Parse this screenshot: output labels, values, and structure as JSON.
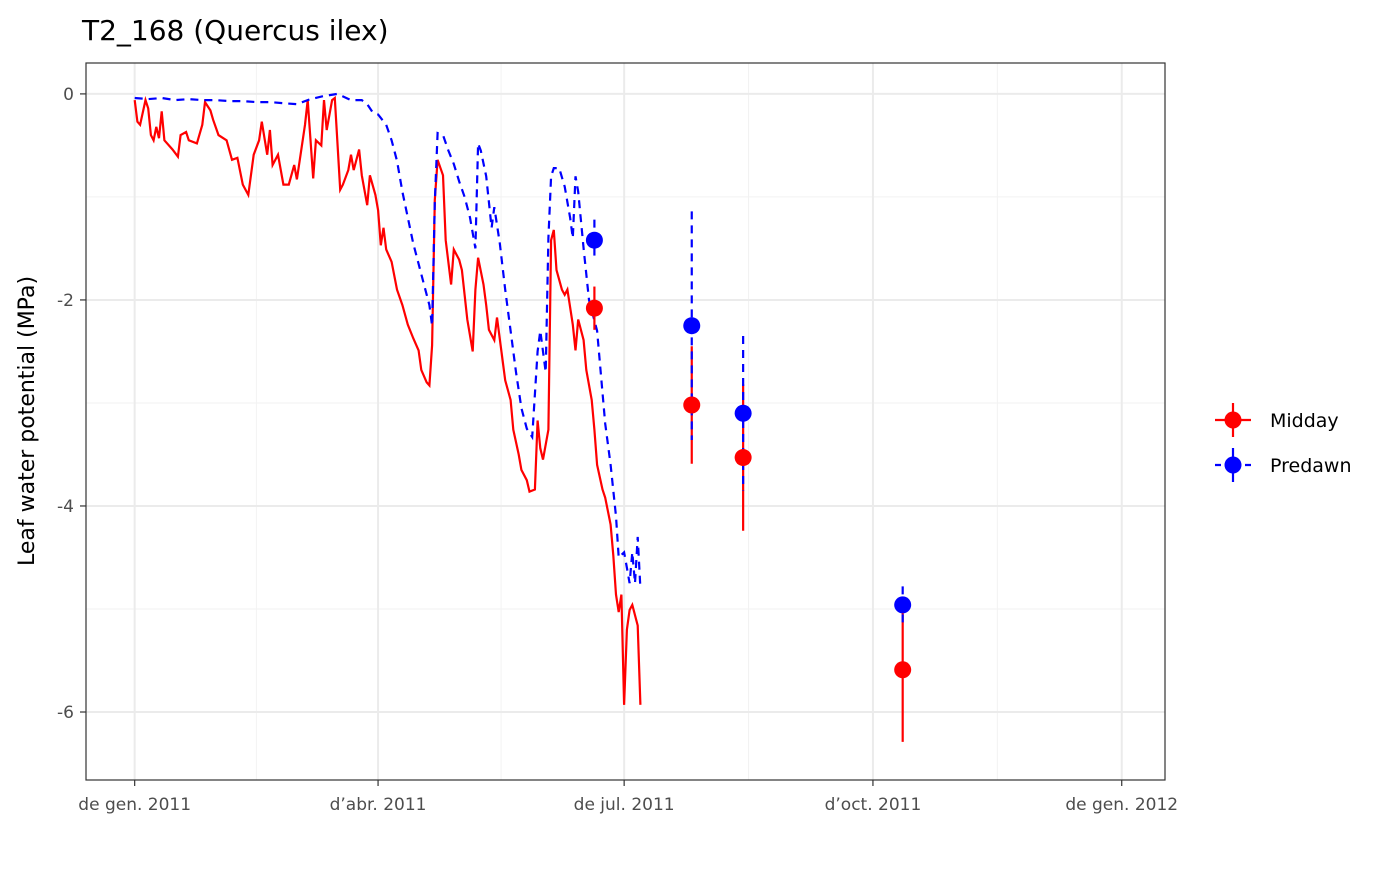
{
  "chart_data": {
    "type": "line",
    "title": "T2_168 (Quercus ilex)",
    "y_label": "Leaf water potential (MPa)",
    "xlim": [
      -18,
      381
    ],
    "ylim": [
      -6.66,
      0.3
    ],
    "xticks": [
      {
        "value": 0,
        "label": "de gen. 2011"
      },
      {
        "value": 90,
        "label": "d’abr. 2011"
      },
      {
        "value": 181,
        "label": "de jul. 2011"
      },
      {
        "value": 273,
        "label": "d’oct. 2011"
      },
      {
        "value": 365,
        "label": "de gen. 2012"
      }
    ],
    "yticks": [
      0,
      -2,
      -4,
      -6
    ],
    "grid": true,
    "legend": "right",
    "series": [
      {
        "name": "Midday",
        "color": "#ff0000",
        "linetype": "solid",
        "x": [
          0,
          1,
          2,
          4,
          5,
          6,
          7,
          8,
          9,
          10,
          11,
          14,
          16,
          17,
          19,
          20,
          23,
          25,
          26,
          28,
          29,
          31,
          34,
          36,
          38,
          40,
          42,
          44,
          46,
          47,
          49,
          50,
          51,
          53,
          55,
          57,
          59,
          60,
          63,
          64,
          66,
          67,
          69,
          70,
          71,
          73,
          74,
          76,
          77,
          79,
          80,
          81,
          83,
          84,
          86,
          87,
          89,
          90,
          91,
          92,
          93,
          95,
          97,
          99,
          101,
          103,
          105,
          106,
          108,
          109,
          110,
          111,
          112,
          114,
          115,
          117,
          118,
          120,
          121,
          122,
          123,
          125,
          126,
          127,
          129,
          130,
          131,
          133,
          134,
          136,
          137,
          139,
          140,
          142,
          143,
          145,
          146,
          148,
          149,
          150,
          151,
          153,
          154,
          155,
          156,
          158,
          159,
          160,
          162,
          163,
          164,
          166,
          167,
          169,
          170,
          171,
          173,
          174,
          176,
          177,
          178,
          179,
          180,
          181,
          182,
          183,
          184,
          186,
          187
        ],
        "values": [
          -0.06,
          -0.27,
          -0.3,
          -0.06,
          -0.14,
          -0.4,
          -0.45,
          -0.32,
          -0.43,
          -0.17,
          -0.45,
          -0.54,
          -0.61,
          -0.4,
          -0.37,
          -0.45,
          -0.48,
          -0.3,
          -0.08,
          -0.16,
          -0.25,
          -0.4,
          -0.45,
          -0.64,
          -0.62,
          -0.88,
          -0.98,
          -0.59,
          -0.45,
          -0.27,
          -0.59,
          -0.35,
          -0.69,
          -0.59,
          -0.88,
          -0.88,
          -0.69,
          -0.83,
          -0.3,
          -0.06,
          -0.82,
          -0.45,
          -0.5,
          -0.06,
          -0.35,
          -0.06,
          -0.04,
          -0.93,
          -0.88,
          -0.74,
          -0.59,
          -0.74,
          -0.54,
          -0.79,
          -1.08,
          -0.79,
          -0.98,
          -1.13,
          -1.47,
          -1.3,
          -1.51,
          -1.63,
          -1.9,
          -2.05,
          -2.24,
          -2.37,
          -2.49,
          -2.68,
          -2.8,
          -2.83,
          -2.44,
          -1.03,
          -0.64,
          -0.79,
          -1.42,
          -1.85,
          -1.51,
          -1.61,
          -1.71,
          -1.95,
          -2.19,
          -2.5,
          -1.9,
          -1.59,
          -1.85,
          -2.05,
          -2.29,
          -2.39,
          -2.17,
          -2.58,
          -2.78,
          -2.97,
          -3.26,
          -3.5,
          -3.65,
          -3.75,
          -3.86,
          -3.84,
          -3.17,
          -3.44,
          -3.55,
          -3.26,
          -1.42,
          -1.32,
          -1.71,
          -1.9,
          -1.95,
          -1.9,
          -2.24,
          -2.49,
          -2.19,
          -2.39,
          -2.68,
          -2.97,
          -3.26,
          -3.6,
          -3.84,
          -3.92,
          -4.18,
          -4.48,
          -4.86,
          -5.03,
          -4.86,
          -5.93,
          -5.2,
          -5.01,
          -4.96,
          -5.16,
          -5.93
        ],
        "obs_x": [
          170,
          206,
          225,
          284
        ],
        "obs_values": [
          -2.08,
          -3.02,
          -3.53,
          -5.59
        ],
        "obs_errors": [
          0.21,
          0.57,
          0.71,
          0.7
        ]
      },
      {
        "name": "Predawn",
        "color": "#0000ff",
        "linetype": "dashed",
        "x": [
          0,
          5,
          10,
          15,
          20,
          25,
          30,
          35,
          40,
          45,
          50,
          55,
          60,
          65,
          70,
          75,
          80,
          84,
          86,
          88,
          90,
          93,
          95,
          97,
          99,
          101,
          103,
          105,
          107,
          109,
          110,
          111,
          112,
          114,
          116,
          118,
          120,
          122,
          124,
          126,
          127,
          128,
          130,
          132,
          133,
          135,
          137,
          139,
          141,
          143,
          145,
          147,
          149,
          150,
          152,
          153,
          154,
          155,
          157,
          159,
          161,
          162,
          163,
          164,
          166,
          168,
          170,
          171,
          172,
          174,
          176,
          178,
          179,
          181,
          182,
          183,
          184,
          185,
          186,
          187
        ],
        "values": [
          -0.04,
          -0.05,
          -0.04,
          -0.06,
          -0.05,
          -0.06,
          -0.06,
          -0.07,
          -0.07,
          -0.08,
          -0.08,
          -0.09,
          -0.1,
          -0.05,
          -0.02,
          0,
          -0.06,
          -0.06,
          -0.1,
          -0.18,
          -0.2,
          -0.3,
          -0.45,
          -0.65,
          -0.95,
          -1.2,
          -1.45,
          -1.65,
          -1.85,
          -2.05,
          -2.25,
          -1.05,
          -0.38,
          -0.4,
          -0.55,
          -0.68,
          -0.85,
          -1,
          -1.2,
          -1.5,
          -0.48,
          -0.55,
          -0.8,
          -1.3,
          -1.1,
          -1.45,
          -1.9,
          -2.3,
          -2.7,
          -3.05,
          -3.25,
          -3.33,
          -2.5,
          -2.3,
          -2.7,
          -1.4,
          -0.8,
          -0.72,
          -0.72,
          -0.9,
          -1.2,
          -1.4,
          -0.8,
          -0.95,
          -1.5,
          -2,
          -2.2,
          -2.3,
          -2.6,
          -3.2,
          -3.6,
          -4.1,
          -4.5,
          -4.45,
          -4.6,
          -4.75,
          -4.45,
          -4.75,
          -4.3,
          -4.8
        ],
        "obs_x": [
          170,
          206,
          225,
          284
        ],
        "obs_values": [
          -1.42,
          -2.25,
          -3.1,
          -4.96
        ],
        "obs_errors": [
          0.2,
          1.11,
          0.75,
          0.18
        ]
      }
    ]
  }
}
